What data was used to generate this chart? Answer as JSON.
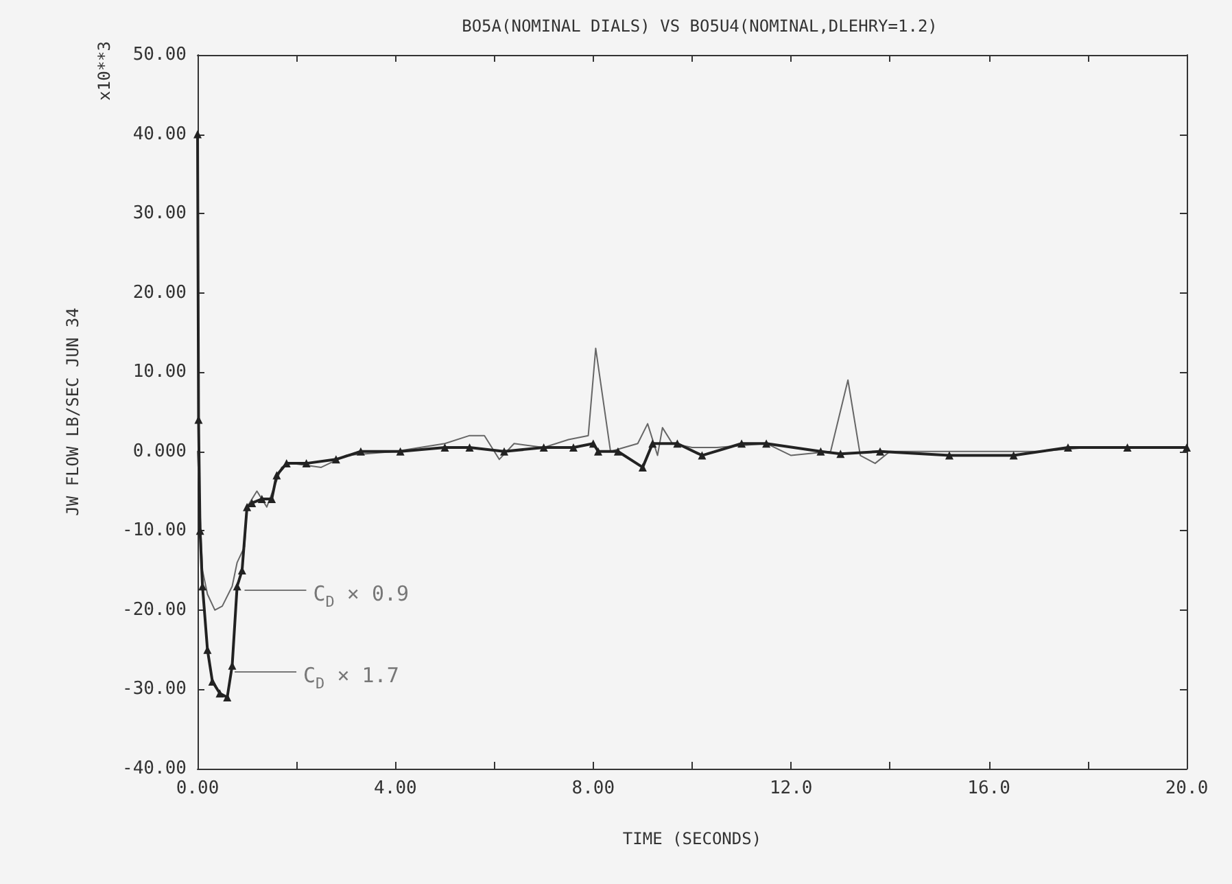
{
  "chart_data": {
    "type": "line",
    "title": "BO5A(NOMINAL DIALS) VS BO5U4(NOMINAL,DLEHRY=1.2)",
    "xlabel": "TIME (SECONDS)",
    "ylabel": "JW FLOW LB/SEC JUN 34",
    "annotations": [
      "x10**3",
      {
        "text": "C$_{D}$ × 0.9",
        "x": 0.95,
        "y": -17.5
      },
      {
        "text": "C$_{D}$ × 1.7",
        "x": 0.75,
        "y": -27.8
      }
    ],
    "series": [
      {
        "color": "#222222",
        "marker": "triangle",
        "x": [
          0,
          0.02,
          0.05,
          0.1,
          0.2,
          0.3,
          0.45,
          0.6,
          0.7,
          0.8,
          0.9,
          1.0,
          1.1,
          1.3,
          1.5,
          1.6,
          1.8,
          2.2,
          2.8,
          3.3,
          4.1,
          5,
          5.5,
          6.2,
          7,
          7.6,
          8.0,
          8.1,
          8.5,
          9.0,
          9.2,
          9.7,
          10.2,
          11,
          11.5,
          12.6,
          13,
          13.8,
          15.2,
          16.5,
          17.6,
          18.8,
          20
        ],
        "values": [
          40,
          4,
          -10,
          -17,
          -25,
          -29,
          -30.5,
          -31,
          -27,
          -17,
          -15,
          -7,
          -6.5,
          -6,
          -6,
          -3,
          -1.5,
          -1.5,
          -1,
          0,
          0,
          0.5,
          0.5,
          0,
          0.5,
          0.5,
          1,
          0,
          0,
          -2,
          1,
          1,
          -0.5,
          1,
          1,
          0,
          -0.3,
          0,
          -0.5,
          -0.5,
          0.5,
          0.5,
          0.5
        ]
      },
      {
        "color": "#666666",
        "marker": "none",
        "x": [
          0,
          0.1,
          0.2,
          0.35,
          0.5,
          0.7,
          0.8,
          0.95,
          1.0,
          1.2,
          1.4,
          1.7,
          1.9,
          2.5,
          3,
          4,
          5,
          5.5,
          5.8,
          6.1,
          6.4,
          7,
          7.5,
          7.9,
          8.05,
          8.35,
          8.9,
          9.1,
          9.3,
          9.4,
          9.6,
          10,
          10.5,
          11.5,
          12,
          12.8,
          13.15,
          13.4,
          13.7,
          14,
          15,
          17,
          18,
          20
        ],
        "values": [
          0,
          -15,
          -18,
          -20,
          -19.5,
          -17,
          -14,
          -12,
          -7,
          -5,
          -7,
          -2,
          -1.5,
          -2,
          -0.5,
          0,
          1,
          2,
          2,
          -1,
          1,
          0.5,
          1.5,
          2,
          13,
          0,
          1,
          3.5,
          -0.5,
          3,
          1,
          0.5,
          0.5,
          1,
          -0.5,
          0,
          9,
          -0.5,
          -1.5,
          0,
          0,
          0,
          0.5,
          0.5
        ]
      }
    ],
    "xlim": [
      0,
      20
    ],
    "xticks": [
      {
        "value": 0,
        "label": "0.00"
      },
      {
        "value": 2,
        "label": null
      },
      {
        "value": 4,
        "label": "4.00"
      },
      {
        "value": 6,
        "label": null
      },
      {
        "value": 8,
        "label": "8.00"
      },
      {
        "value": 10,
        "label": null
      },
      {
        "value": 12,
        "label": "12.0"
      },
      {
        "value": 14,
        "label": null
      },
      {
        "value": 16,
        "label": "16.0"
      },
      {
        "value": 18,
        "label": null
      },
      {
        "value": 20,
        "label": "20.0"
      }
    ],
    "ylim": [
      -40,
      50
    ],
    "yticks": [
      {
        "value": -40,
        "label": "-40.00"
      },
      {
        "value": -30,
        "label": "-30.00"
      },
      {
        "value": -20,
        "label": "-20.00"
      },
      {
        "value": -10,
        "label": "-10.00"
      },
      {
        "value": 0,
        "label": "0.000"
      },
      {
        "value": 10,
        "label": "10.00"
      },
      {
        "value": 20,
        "label": "20.00"
      },
      {
        "value": 30,
        "label": "30.00"
      },
      {
        "value": 40,
        "label": "40.00"
      },
      {
        "value": 50,
        "label": "50.00"
      }
    ],
    "grid": false,
    "line_style": "solid"
  }
}
